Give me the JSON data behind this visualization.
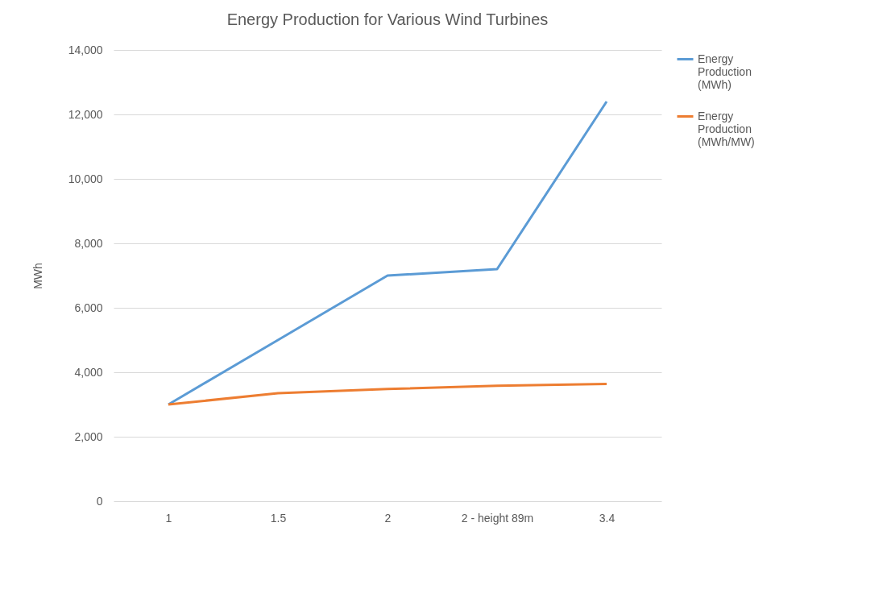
{
  "chart_data": {
    "type": "line",
    "title": "Energy Production for Various Wind Turbines",
    "ylabel": "MWh",
    "categories": [
      "1",
      "1.5",
      "2",
      "2 - height 89m",
      "3.4"
    ],
    "series": [
      {
        "name": "Energy Production (MWh)",
        "color": "#5b9bd5",
        "values": [
          3000,
          5000,
          7000,
          7200,
          12400
        ]
      },
      {
        "name": "Energy Production (MWh/MW)",
        "color": "#ed7d31",
        "values": [
          3000,
          3350,
          3480,
          3580,
          3640
        ]
      }
    ],
    "ylim": [
      0,
      14000
    ],
    "yticks": [
      0,
      {
        "value": 2000,
        "label": "2,000"
      },
      {
        "value": 4000,
        "label": "4,000"
      },
      {
        "value": 6000,
        "label": "6,000"
      },
      {
        "value": 8000,
        "label": "8,000"
      },
      {
        "value": 10000,
        "label": "10,000"
      },
      {
        "value": 12000,
        "label": "12,000"
      },
      {
        "value": 14000,
        "label": "14,000"
      }
    ],
    "grid": "y",
    "legend": "right",
    "marker": "none",
    "line_style": "solid"
  }
}
